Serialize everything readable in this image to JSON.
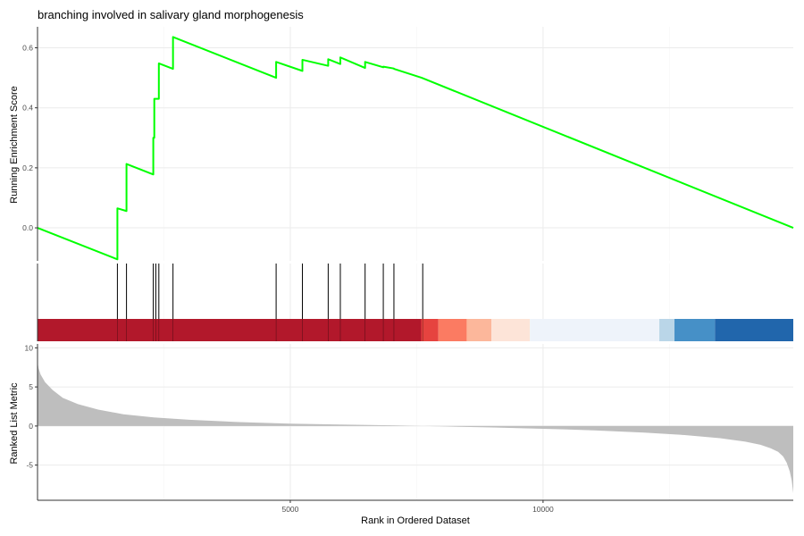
{
  "chart_data": {
    "type": "line",
    "title": "branching involved in salivary gland morphogenesis",
    "xlabel": "Rank in Ordered Dataset",
    "xlim": [
      0,
      14950
    ],
    "xticks": [
      5000,
      10000
    ],
    "xtick_labels": [
      "5000",
      "10000"
    ],
    "xgrid_minor": [
      2500,
      7500,
      12500
    ],
    "grid": true,
    "colors": {
      "curve": "#00ff00",
      "hits": "#000000",
      "metric_fill": "#bebebe",
      "grid": "#ebebeb"
    },
    "running_es": {
      "ylabel": "Running Enrichment Score",
      "ylim": [
        -0.11,
        0.67
      ],
      "yticks": [
        0.0,
        0.2,
        0.4,
        0.6
      ],
      "ytick_labels": [
        "0.0",
        "0.2",
        "0.4",
        "0.6"
      ],
      "x": [
        0,
        1580,
        1580,
        1760,
        1760,
        2290,
        2290,
        2310,
        2310,
        2340,
        2340,
        2400,
        2400,
        2680,
        2680,
        4720,
        4720,
        5240,
        5240,
        5750,
        5750,
        5990,
        5990,
        6480,
        6480,
        6840,
        6840,
        7050,
        7050,
        7600,
        14950
      ],
      "y": [
        0.0,
        -0.105,
        0.065,
        0.056,
        0.213,
        0.178,
        0.3,
        0.3,
        0.43,
        0.43,
        0.43,
        0.43,
        0.548,
        0.53,
        0.636,
        0.5,
        0.553,
        0.523,
        0.56,
        0.54,
        0.562,
        0.546,
        0.568,
        0.533,
        0.553,
        0.535,
        0.537,
        0.531,
        0.53,
        0.5,
        0.0
      ]
    },
    "hits": [
      1580,
      1760,
      2290,
      2340,
      2400,
      2680,
      4720,
      5240,
      5750,
      5990,
      6480,
      6840,
      7050,
      7620
    ],
    "heat_band": [
      {
        "from": 0,
        "to": 7590,
        "color": "#b2182b"
      },
      {
        "from": 7590,
        "to": 7930,
        "color": "#e6433f"
      },
      {
        "from": 7930,
        "to": 8490,
        "color": "#fb7b62"
      },
      {
        "from": 8490,
        "to": 8980,
        "color": "#fcb79b"
      },
      {
        "from": 8980,
        "to": 9740,
        "color": "#fde4d8"
      },
      {
        "from": 9740,
        "to": 12300,
        "color": "#eef3fa"
      },
      {
        "from": 12300,
        "to": 12600,
        "color": "#bad6e8"
      },
      {
        "from": 12600,
        "to": 13400,
        "color": "#4690c7"
      },
      {
        "from": 13400,
        "to": 14950,
        "color": "#2166ac"
      }
    ],
    "ranked_metric": {
      "ylabel": "Ranked List Metric",
      "ylim": [
        -9.5,
        10.5
      ],
      "yticks": [
        10,
        5,
        0,
        -5
      ],
      "ytick_labels": [
        "10",
        "5",
        "0",
        "-5"
      ],
      "x": [
        0,
        20,
        60,
        150,
        300,
        500,
        800,
        1200,
        1700,
        2300,
        3000,
        4000,
        5000,
        6000,
        7000,
        7500,
        8000,
        9000,
        10000,
        11000,
        12000,
        12800,
        13500,
        14000,
        14300,
        14500,
        14650,
        14750,
        14820,
        14880,
        14920,
        14950
      ],
      "y": [
        8.2,
        7.4,
        6.6,
        5.6,
        4.6,
        3.6,
        2.8,
        2.1,
        1.5,
        1.1,
        0.8,
        0.5,
        0.3,
        0.18,
        0.08,
        0.02,
        -0.05,
        -0.18,
        -0.35,
        -0.55,
        -0.85,
        -1.15,
        -1.55,
        -2.0,
        -2.4,
        -2.85,
        -3.3,
        -3.9,
        -4.7,
        -5.8,
        -7.0,
        -8.6
      ]
    }
  }
}
